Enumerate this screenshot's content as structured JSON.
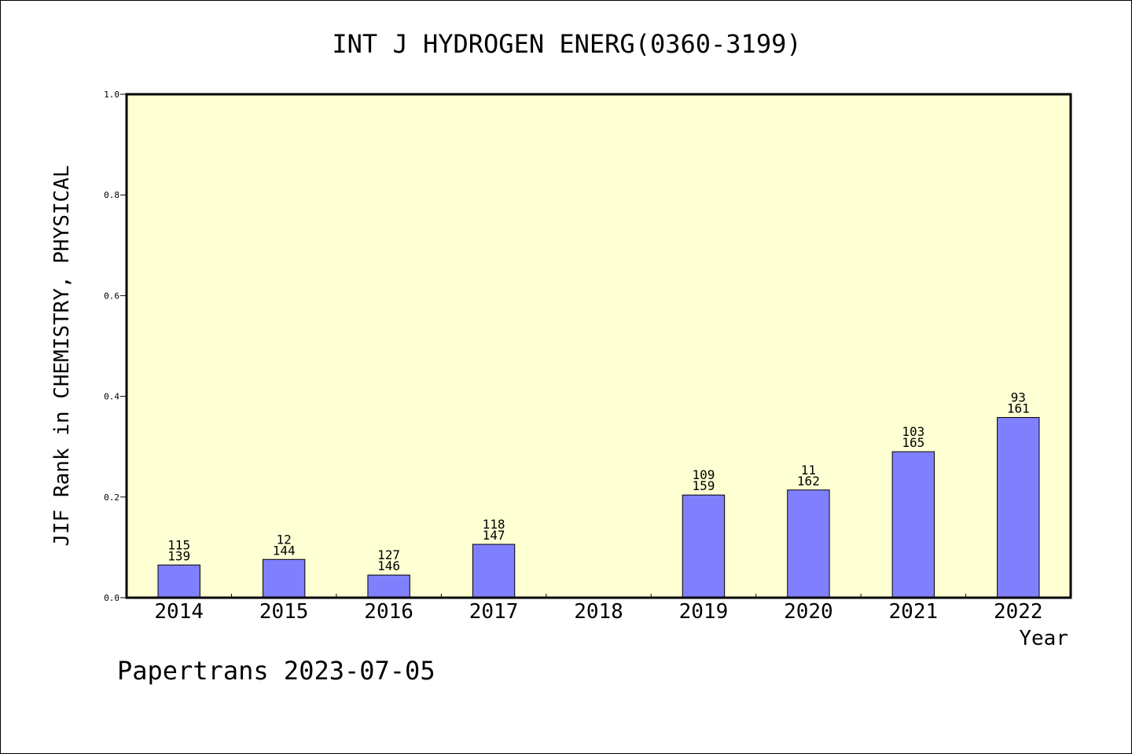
{
  "footer": "Papertrans 2023-07-05",
  "colors": {
    "plot_bg": "#ffffd4",
    "bar_fill": "#8080ff",
    "axis": "#000000"
  },
  "chart_data": {
    "type": "bar",
    "title": "INT J HYDROGEN ENERG(0360-3199)",
    "xlabel": "Year",
    "ylabel": "JIF Rank in CHEMISTRY, PHYSICAL",
    "ylim": [
      0,
      1
    ],
    "yticks": [
      "0.0",
      "0.2",
      "0.4",
      "0.6",
      "0.8",
      "1.0"
    ],
    "categories": [
      "2014",
      "2015",
      "2016",
      "2017",
      "2018",
      "2019",
      "2020",
      "2021",
      "2022"
    ],
    "values": [
      0.065,
      0.076,
      0.045,
      0.106,
      null,
      0.204,
      0.214,
      0.29,
      0.358
    ],
    "labels": [
      [
        "115",
        "139"
      ],
      [
        "12",
        "144"
      ],
      [
        "127",
        "146"
      ],
      [
        "118",
        "147"
      ],
      null,
      [
        "109",
        "159"
      ],
      [
        "11",
        "162"
      ],
      [
        "103",
        "165"
      ],
      [
        "93",
        "161"
      ]
    ],
    "grid": false,
    "legend": "none"
  }
}
